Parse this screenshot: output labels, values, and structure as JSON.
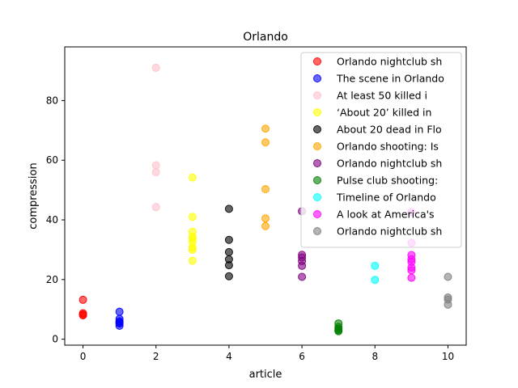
{
  "chart_data": {
    "type": "scatter",
    "title": "Orlando",
    "xlabel": "article",
    "ylabel": "compression",
    "xlim": [
      -0.5,
      10.5
    ],
    "ylim": [
      -2,
      98
    ],
    "xticks": [
      0,
      2,
      4,
      6,
      8,
      10
    ],
    "yticks": [
      0,
      20,
      40,
      60,
      80
    ],
    "grid": false,
    "legend_position": "top-right",
    "series": [
      {
        "name": "Orlando nightclub sh",
        "color": "#ff0000",
        "x": [
          0,
          0,
          0,
          0
        ],
        "y": [
          13.2,
          8.7,
          8.3,
          8.0
        ]
      },
      {
        "name": "The scene in Orlando",
        "color": "#0000ff",
        "x": [
          1,
          1,
          1,
          1,
          1,
          1
        ],
        "y": [
          9.2,
          6.8,
          6.0,
          5.6,
          5.3,
          4.5
        ]
      },
      {
        "name": "At least 50 killed i",
        "color": "#ffc0cb",
        "x": [
          2,
          2,
          2,
          2
        ],
        "y": [
          91.0,
          58.3,
          56.0,
          44.3
        ]
      },
      {
        "name": "‘About 20’ killed in",
        "color": "#ffff00",
        "x": [
          3,
          3,
          3,
          3,
          3,
          3,
          3,
          3,
          3
        ],
        "y": [
          54.2,
          41.0,
          36.0,
          34.3,
          33.6,
          32.5,
          30.7,
          30.0,
          26.3
        ]
      },
      {
        "name": "About 20 dead in Flo",
        "color": "#000000",
        "x": [
          4,
          4,
          4,
          4,
          4,
          4
        ],
        "y": [
          43.7,
          33.3,
          29.2,
          26.8,
          24.8,
          21.1
        ]
      },
      {
        "name": "Orlando shooting: Is",
        "color": "#ffa500",
        "x": [
          5,
          5,
          5,
          5,
          5
        ],
        "y": [
          70.6,
          66.0,
          50.3,
          40.5,
          37.9
        ]
      },
      {
        "name": "Orlando nightclub sh",
        "color": "#800080",
        "x": [
          6,
          6,
          6,
          6,
          6,
          6
        ],
        "y": [
          42.9,
          28.3,
          27.4,
          26.2,
          24.6,
          20.9
        ]
      },
      {
        "name": "Pulse club shooting:",
        "color": "#008000",
        "x": [
          7,
          7,
          7,
          7,
          7
        ],
        "y": [
          5.3,
          4.1,
          3.5,
          3.0,
          2.7
        ]
      },
      {
        "name": "Timeline of Orlando",
        "color": "#00ffff",
        "x": [
          8,
          8
        ],
        "y": [
          24.6,
          19.9
        ]
      },
      {
        "name": "A look at America's",
        "color": "#ff00ff",
        "x": [
          9,
          9,
          9,
          9,
          9,
          9,
          9,
          9
        ],
        "y": [
          42.6,
          32.3,
          28.2,
          26.8,
          25.9,
          24.0,
          23.1,
          20.6
        ]
      },
      {
        "name": "Orlando nightclub sh",
        "color": "#808080",
        "x": [
          10,
          10,
          10,
          10
        ],
        "y": [
          20.9,
          14.0,
          13.3,
          11.6
        ]
      }
    ]
  }
}
